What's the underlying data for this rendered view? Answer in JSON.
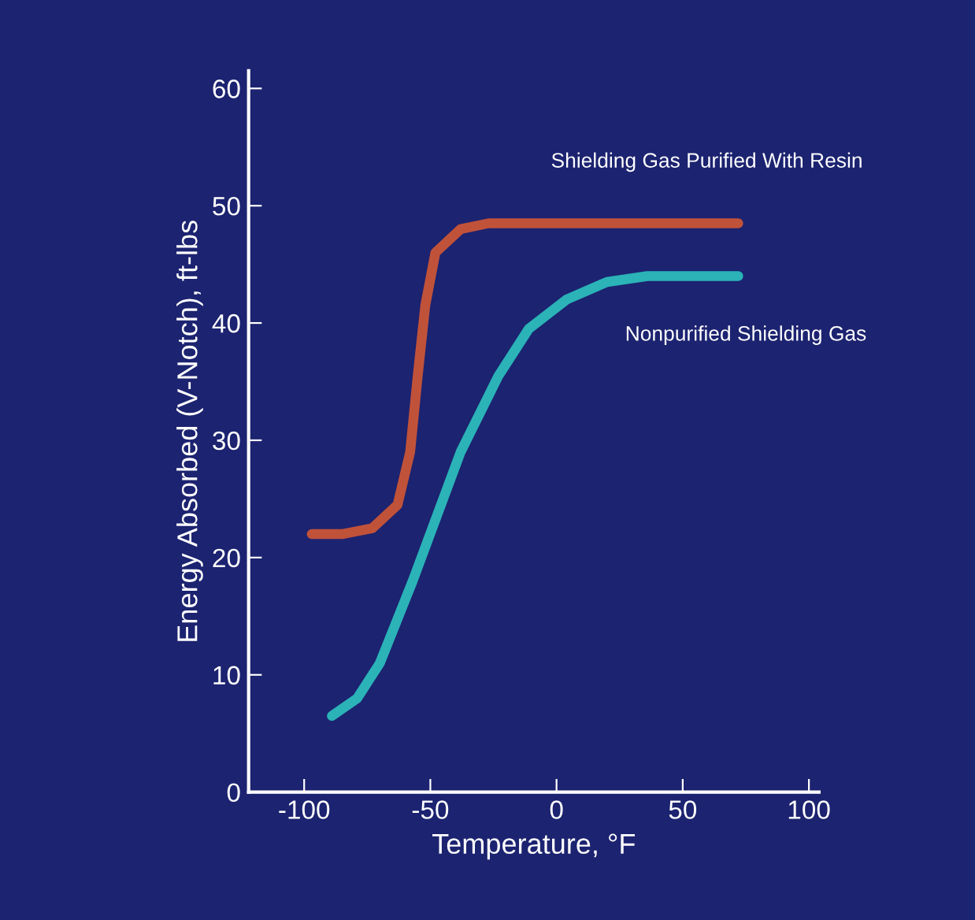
{
  "chart_data": {
    "type": "line",
    "xlabel": "Temperature, °F",
    "ylabel": "Energy Absorbed (V-Notch), ft-lbs",
    "xlim": [
      -122,
      104
    ],
    "ylim": [
      0,
      61.5
    ],
    "xticks": [
      -100,
      -50,
      0,
      50,
      100
    ],
    "yticks": [
      0,
      10,
      20,
      30,
      40,
      50,
      60
    ],
    "grid": false,
    "legend": false,
    "marker": "none",
    "line_style": "solid",
    "series": [
      {
        "name": "Shielding Gas Purified With Resin",
        "color": "#c0523a",
        "x": [
          -97,
          -85,
          -73,
          -63,
          -58,
          -55,
          -52,
          -48,
          -38,
          -27,
          0,
          40,
          72
        ],
        "values": [
          22,
          22,
          22.5,
          24.5,
          29,
          35.5,
          41.5,
          46,
          48,
          48.5,
          48.5,
          48.5,
          48.5
        ]
      },
      {
        "name": "Nonpurified Shielding Gas",
        "color": "#2bb3b8",
        "x": [
          -89,
          -79,
          -70,
          -57,
          -38,
          -23,
          -11,
          4,
          20,
          36,
          72
        ],
        "values": [
          6.5,
          8,
          11,
          18,
          29,
          35.5,
          39.5,
          42,
          43.5,
          44,
          44
        ]
      }
    ]
  }
}
